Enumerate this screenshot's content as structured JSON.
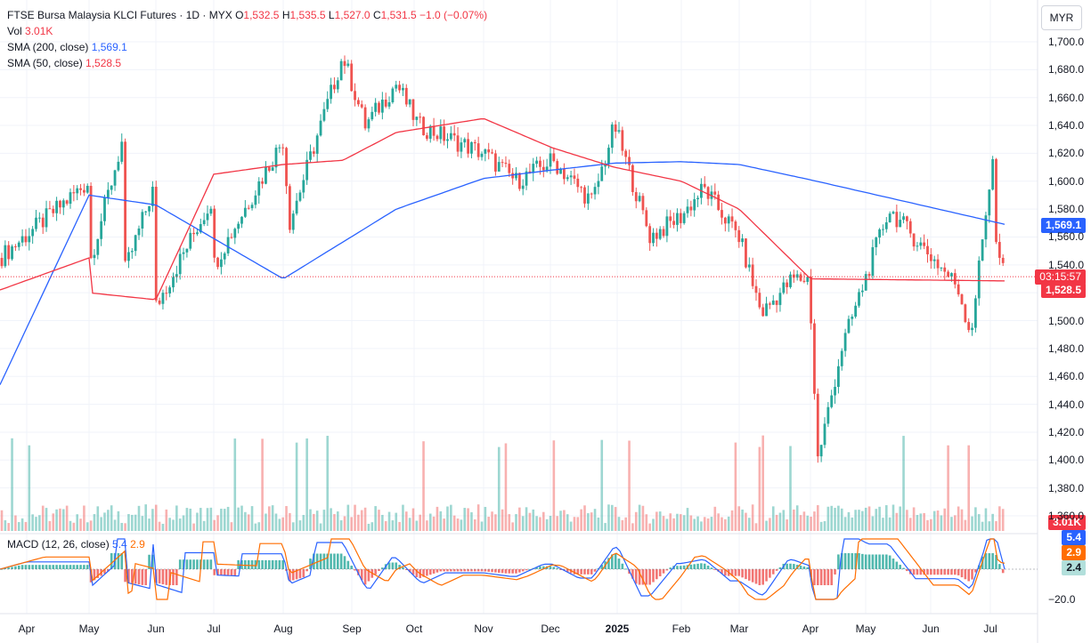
{
  "legend": {
    "title": "FTSE Bursa Malaysia KLCI Futures · 1D · MYX",
    "o_label": "O",
    "o_value": "1,532.5",
    "h_label": "H",
    "h_value": "1,535.5",
    "l_label": "L",
    "l_value": "1,527.0",
    "c_label": "C",
    "c_value": "1,531.5",
    "change": "−1.0 (−0.07%)",
    "vol_label": "Vol",
    "vol_value": "3.01K",
    "sma200_label": "SMA (200, close)",
    "sma200_value": "1,569.1",
    "sma50_label": "SMA (50, close)",
    "sma50_value": "1,528.5",
    "macd_label": "MACD (12, 26, close)",
    "macd_a": "5.4",
    "macd_b": "2.9"
  },
  "currency": "MYR",
  "tags": {
    "sma200": "1,569.1",
    "countdown": "03:15:57",
    "sma50": "1,528.5",
    "volume": "3.01K",
    "macd": "5.4",
    "signal": "2.9",
    "hist": "2.4"
  },
  "colors": {
    "up": "#26a69a",
    "down": "#ef5350",
    "sma200": "#2962ff",
    "sma50": "#f23645",
    "macd": "#2962ff",
    "signal": "#ff6d00"
  },
  "y_ticks": [
    "1,700.0",
    "1,680.0",
    "1,660.0",
    "1,640.0",
    "1,620.0",
    "1,600.0",
    "1,580.0",
    "1,560.0",
    "1,540.0",
    "1,500.0",
    "1,480.0",
    "1,460.0",
    "1,440.0",
    "1,420.0",
    "1,400.0",
    "1,380.0",
    "1,360.0"
  ],
  "macd_tick": "−20.0",
  "x_ticks": [
    "Apr",
    "May",
    "Jun",
    "Jul",
    "Aug",
    "Sep",
    "Oct",
    "Nov",
    "Dec",
    "2025",
    "Feb",
    "Mar",
    "Apr",
    "May",
    "Jun",
    "Jul"
  ],
  "chart_data": {
    "type": "candlestick",
    "title": "FTSE Bursa Malaysia KLCI Futures · 1D · MYX",
    "ylim": [
      1360,
      1700
    ],
    "last_close": 1531.5,
    "sma200_keypoints": [
      [
        "start",
        1454
      ],
      [
        "Aug",
        1530
      ],
      [
        "Oct",
        1580
      ],
      [
        "Nov",
        1602
      ],
      [
        "Dec",
        1608
      ],
      [
        "2025",
        1613
      ],
      [
        "Feb",
        1614
      ],
      [
        "Mar",
        1612
      ],
      [
        "Apr",
        1601
      ],
      [
        "May",
        1590
      ],
      [
        "Jun",
        1583
      ],
      [
        "end",
        1569.1
      ]
    ],
    "sma50_keypoints": [
      [
        "start",
        1522
      ],
      [
        "May",
        1545
      ],
      [
        "Jul",
        1605
      ],
      [
        "Aug",
        1612
      ],
      [
        "Sep",
        1615
      ],
      [
        "Oct",
        1635
      ],
      [
        "Nov",
        1645
      ],
      [
        "Dec",
        1624
      ],
      [
        "2025",
        1610
      ],
      [
        "Feb",
        1600
      ],
      [
        "Mar",
        1580
      ],
      [
        "Apr",
        1530
      ],
      [
        "May",
        1520
      ],
      [
        "Jun",
        1515
      ],
      [
        "end",
        1528.5
      ]
    ],
    "price_keypoints": [
      [
        "start",
        1545
      ],
      [
        "Apr",
        1530
      ],
      [
        "May",
        1600
      ],
      [
        "May-late",
        1635
      ],
      [
        "Jun",
        1600
      ],
      [
        "Jul",
        1590
      ],
      [
        "Jul-mid",
        1635
      ],
      [
        "Aug",
        1630
      ],
      [
        "Aug-mid",
        1570
      ],
      [
        "Sep",
        1690
      ],
      [
        "Sep-mid",
        1640
      ],
      [
        "Oct",
        1670
      ],
      [
        "Oct-mid",
        1640
      ],
      [
        "Nov",
        1620
      ],
      [
        "Nov-mid",
        1600
      ],
      [
        "Dec",
        1615
      ],
      [
        "Dec-late",
        1585
      ],
      [
        "2025",
        1640
      ],
      [
        "Jan-mid",
        1560
      ],
      [
        "Feb",
        1575
      ],
      [
        "Feb-mid",
        1595
      ],
      [
        "Mar",
        1560
      ],
      [
        "Mar-mid",
        1505
      ],
      [
        "Mar-late",
        1530
      ],
      [
        "Apr",
        1510
      ],
      [
        "Apr-mid",
        1400
      ],
      [
        "Apr-late",
        1480
      ],
      [
        "May",
        1540
      ],
      [
        "May-mid",
        1580
      ],
      [
        "May-late",
        1535
      ],
      [
        "Jun",
        1510
      ],
      [
        "Jun-mid",
        1525
      ],
      [
        "Jun-late",
        1490
      ],
      [
        "Jul",
        1540
      ],
      [
        "Jul-mid",
        1555
      ],
      [
        "end",
        1531.5
      ]
    ],
    "macd_last": 5.4,
    "signal_last": 2.9,
    "hist_last": 2.4,
    "volume_last": "3.01K"
  }
}
